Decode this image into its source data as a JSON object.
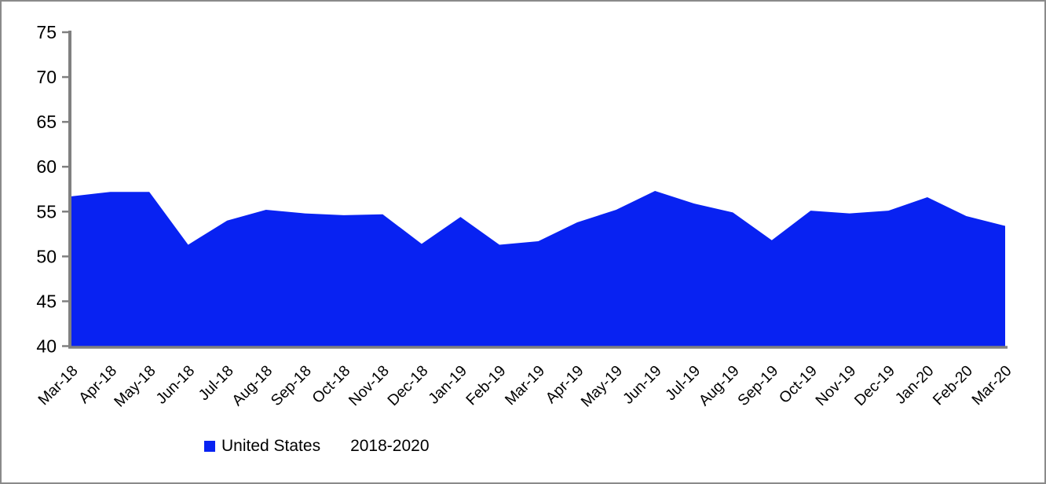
{
  "chart_data": {
    "type": "area",
    "title": "",
    "categories": [
      "Mar-18",
      "Apr-18",
      "May-18",
      "Jun-18",
      "Jul-18",
      "Aug-18",
      "Sep-18",
      "Oct-18",
      "Nov-18",
      "Dec-18",
      "Jan-19",
      "Feb-19",
      "Mar-19",
      "Apr-19",
      "May-19",
      "Jun-19",
      "Jul-19",
      "Aug-19",
      "Sep-19",
      "Oct-19",
      "Nov-19",
      "Dec-19",
      "Jan-20",
      "Feb-20",
      "Mar-20"
    ],
    "series": [
      {
        "name": "United States",
        "values": [
          56.7,
          57.2,
          57.2,
          51.3,
          54.0,
          55.2,
          54.8,
          54.6,
          54.7,
          51.4,
          54.4,
          51.3,
          51.7,
          53.8,
          55.2,
          57.3,
          55.9,
          54.9,
          51.8,
          55.1,
          54.8,
          55.1,
          56.6,
          54.5,
          53.4
        ]
      }
    ],
    "xlabel": "",
    "ylabel": "",
    "ylim": [
      40,
      75
    ],
    "yticks": [
      40,
      45,
      50,
      55,
      60,
      65,
      70,
      75
    ],
    "grid": false,
    "legend_position": "bottom",
    "fill_color": "#0822F2",
    "axis_color": "#808080",
    "text_color": "#000000"
  },
  "legend": {
    "series_label": "United States",
    "period_label": "2018-2020"
  }
}
